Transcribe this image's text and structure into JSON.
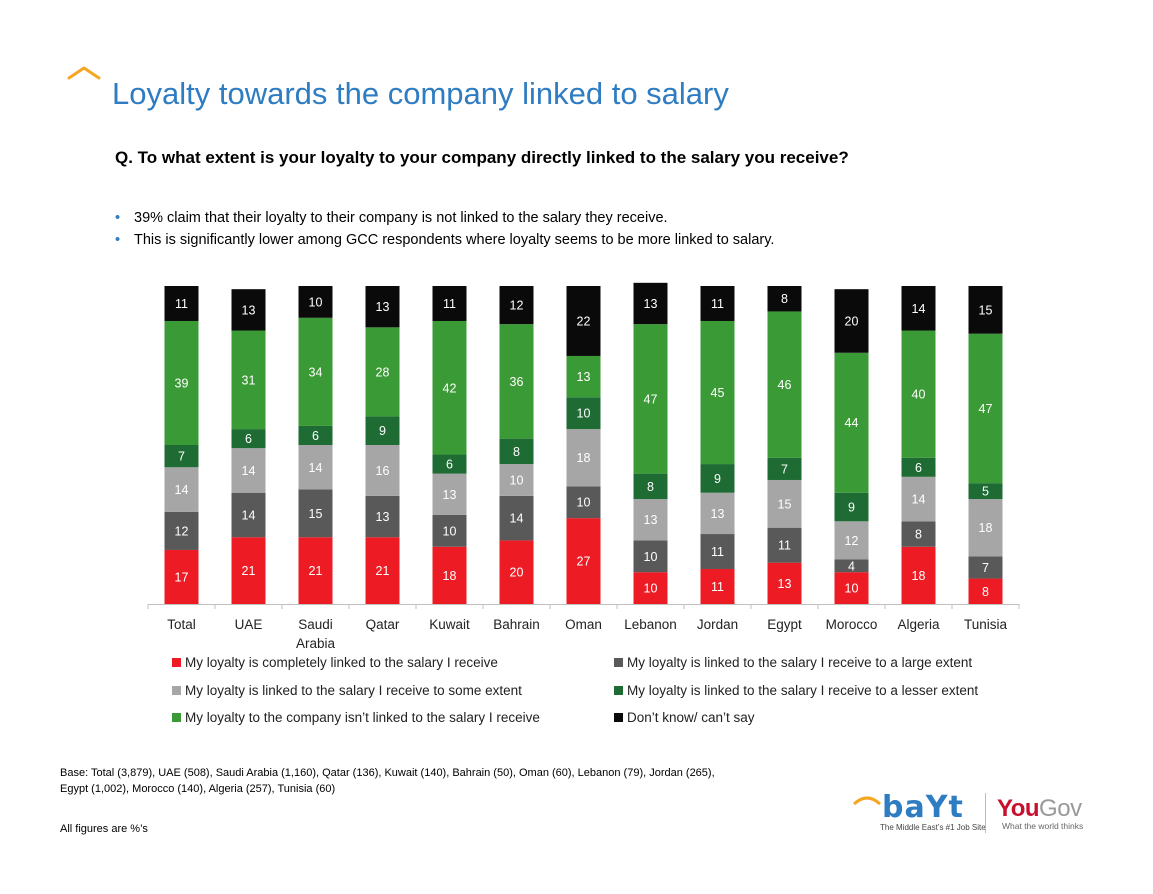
{
  "title": "Loyalty towards the company linked to salary",
  "question": "Q. To what extent is your loyalty to your company directly linked to the salary you receive?",
  "bullets": [
    "39% claim that their loyalty to their company is not linked to the salary they receive.",
    "This is significantly lower among GCC respondents where loyalty seems to be more linked to salary."
  ],
  "colors": {
    "accent": "#2e7cc2",
    "chevron": "#f5a623"
  },
  "chart_data": {
    "type": "bar",
    "stacked": true,
    "categories": [
      "Total",
      "UAE",
      "Saudi Arabia",
      "Qatar",
      "Kuwait",
      "Bahrain",
      "Oman",
      "Lebanon",
      "Jordan",
      "Egypt",
      "Morocco",
      "Algeria",
      "Tunisia"
    ],
    "category_lines": [
      [
        "Total"
      ],
      [
        "UAE"
      ],
      [
        "Saudi",
        "Arabia"
      ],
      [
        "Qatar"
      ],
      [
        "Kuwait"
      ],
      [
        "Bahrain"
      ],
      [
        "Oman"
      ],
      [
        "Lebanon"
      ],
      [
        "Jordan"
      ],
      [
        "Egypt"
      ],
      [
        "Morocco"
      ],
      [
        "Algeria"
      ],
      [
        "Tunisia"
      ]
    ],
    "series": [
      {
        "name": "My loyalty is completely linked to the salary I receive",
        "color": "#ed1c24",
        "label_color": "#ffffff",
        "values": [
          17,
          21,
          21,
          21,
          18,
          20,
          27,
          10,
          11,
          13,
          10,
          18,
          8
        ]
      },
      {
        "name": "My loyalty is linked to the salary I receive to a large extent",
        "color": "#595959",
        "label_color": "#ffffff",
        "values": [
          12,
          14,
          15,
          13,
          10,
          14,
          10,
          10,
          11,
          11,
          4,
          8,
          7
        ]
      },
      {
        "name": "My loyalty is linked to the salary I receive to some extent",
        "color": "#a6a6a6",
        "label_color": "#ffffff",
        "values": [
          14,
          14,
          14,
          16,
          13,
          10,
          18,
          13,
          13,
          15,
          12,
          14,
          18
        ]
      },
      {
        "name": "My loyalty is linked to the salary I receive to a lesser extent",
        "color": "#1e6b34",
        "label_color": "#ffffff",
        "values": [
          7,
          6,
          6,
          9,
          6,
          8,
          10,
          8,
          9,
          7,
          9,
          6,
          5
        ]
      },
      {
        "name": "My loyalty to the company isn’t linked to the salary I receive",
        "color": "#3a9a35",
        "label_color": "#ffffff",
        "values": [
          39,
          31,
          34,
          28,
          42,
          36,
          13,
          47,
          45,
          46,
          44,
          40,
          47
        ]
      },
      {
        "name": "Don’t know/ can’t say",
        "color": "#0a0a0a",
        "label_color": "#ffffff",
        "values": [
          11,
          13,
          10,
          13,
          11,
          12,
          22,
          13,
          11,
          8,
          20,
          14,
          15
        ]
      }
    ],
    "ylim": [
      0,
      100
    ],
    "xlabel": "",
    "ylabel": "",
    "legend_position": "bottom",
    "grid": false
  },
  "base_note_lines": [
    "Base:  Total (3,879), UAE (508), Saudi Arabia (1,160), Qatar (136), Kuwait (140), Bahrain (50), Oman (60), Lebanon (79), Jordan (265),",
    "Egypt (1,002), Morocco (140), Algeria (257), Tunisia (60)"
  ],
  "figures_note": "All figures are %’s",
  "logos": {
    "bayt_word": "baYt",
    "bayt_tagline": "The Middle East’s #1 Job Site",
    "yougov_you": "You",
    "yougov_gov": "Gov",
    "yougov_tagline": "What the world thinks"
  }
}
